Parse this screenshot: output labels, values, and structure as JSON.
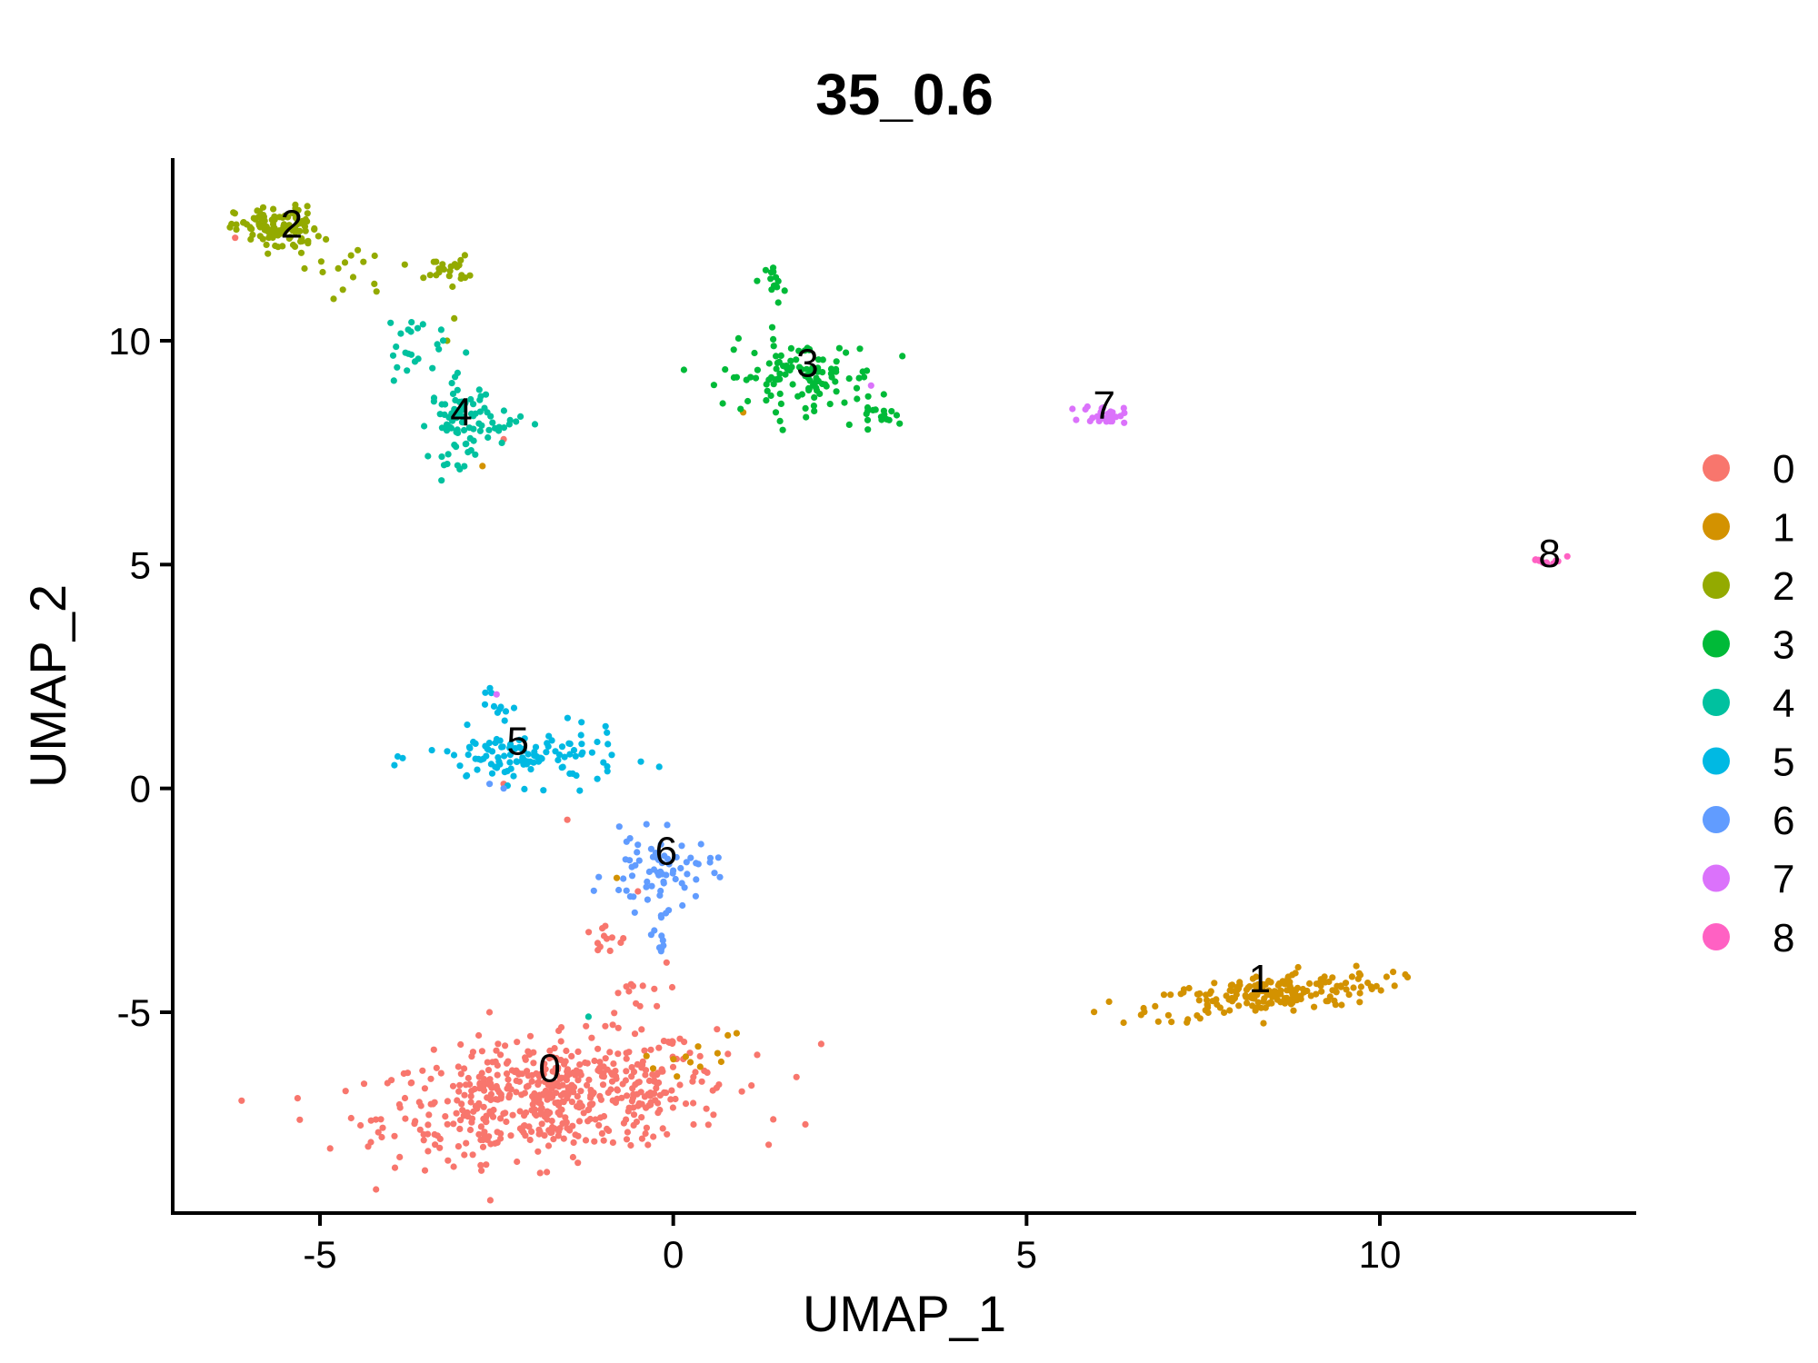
{
  "chart_data": {
    "type": "scatter",
    "title": "35_0.6",
    "xlabel": "UMAP_1",
    "ylabel": "UMAP_2",
    "xlim": [
      -7.1,
      13.6
    ],
    "ylim": [
      -9.5,
      14.2
    ],
    "x_ticks": [
      -5,
      0,
      5,
      10
    ],
    "x_tick_labels": [
      "-5",
      "0",
      "5",
      "10"
    ],
    "y_ticks": [
      -5,
      0,
      5,
      10
    ],
    "y_tick_labels": [
      "-5",
      "0",
      "5",
      "10"
    ],
    "grid": false,
    "legend_position": "right",
    "series": [
      {
        "name": "0",
        "color": "#F8766D",
        "clusters": [
          {
            "cx": -1.7,
            "cy": -6.9,
            "sx": 1.25,
            "sy": 0.62,
            "n": 560,
            "rot": 0.18
          },
          {
            "cx": -0.6,
            "cy": -4.6,
            "sx": 0.25,
            "sy": 0.35,
            "n": 14,
            "rot": 0
          },
          {
            "cx": -1.0,
            "cy": -3.4,
            "sx": 0.2,
            "sy": 0.2,
            "n": 12,
            "rot": 0
          }
        ],
        "points": [
          [
            -6.2,
            12.3
          ],
          [
            -2.4,
            7.8
          ],
          [
            -1.5,
            -0.7
          ],
          [
            -0.5,
            -2.3
          ],
          [
            -2.4,
            0.1
          ]
        ]
      },
      {
        "name": "1",
        "color": "#D39200",
        "clusters": [
          {
            "cx": 8.4,
            "cy": -4.6,
            "sx": 0.85,
            "sy": 0.22,
            "n": 200,
            "rot": 0.18
          },
          {
            "cx": 0.3,
            "cy": -6.0,
            "sx": 0.35,
            "sy": 0.18,
            "n": 12,
            "rot": 0.5
          }
        ],
        "points": [
          [
            -2.7,
            7.2
          ],
          [
            0.99,
            8.4
          ],
          [
            -0.8,
            -2.0
          ]
        ]
      },
      {
        "name": "2",
        "color": "#93AA00",
        "clusters": [
          {
            "cx": -5.6,
            "cy": 12.5,
            "sx": 0.3,
            "sy": 0.25,
            "n": 110,
            "rot": 0
          },
          {
            "cx": -3.2,
            "cy": 11.6,
            "sx": 0.15,
            "sy": 0.15,
            "n": 22,
            "rot": 0
          },
          {
            "cx": -4.6,
            "cy": 11.6,
            "sx": 0.35,
            "sy": 0.3,
            "n": 14,
            "rot": 0
          }
        ],
        "points": [
          [
            -3.1,
            10.5
          ],
          [
            -3.2,
            10.0
          ],
          [
            -3.8,
            11.7
          ],
          [
            -4.2,
            11.1
          ]
        ]
      },
      {
        "name": "3",
        "color": "#00BA38",
        "clusters": [
          {
            "cx": 1.8,
            "cy": 9.2,
            "sx": 0.55,
            "sy": 0.38,
            "n": 110,
            "rot": 0
          },
          {
            "cx": 3.0,
            "cy": 8.3,
            "sx": 0.18,
            "sy": 0.1,
            "n": 18,
            "rot": 0
          },
          {
            "cx": 1.45,
            "cy": 11.3,
            "sx": 0.07,
            "sy": 0.22,
            "n": 14,
            "rot": 0
          }
        ],
        "points": [
          [
            0.7,
            8.6
          ],
          [
            1.4,
            10.3
          ],
          [
            2.6,
            8.7
          ]
        ]
      },
      {
        "name": "4",
        "color": "#00C19F",
        "clusters": [
          {
            "cx": -3.0,
            "cy": 8.2,
            "sx": 0.22,
            "sy": 0.45,
            "n": 85,
            "rot": 0
          },
          {
            "cx": -3.7,
            "cy": 9.8,
            "sx": 0.3,
            "sy": 0.35,
            "n": 22,
            "rot": 0.6
          },
          {
            "cx": -2.2,
            "cy": 8.1,
            "sx": 0.18,
            "sy": 0.15,
            "n": 9,
            "rot": 0
          }
        ],
        "points": [
          [
            -4.0,
            10.4
          ],
          [
            -1.2,
            -5.1
          ]
        ]
      },
      {
        "name": "5",
        "color": "#00B9E3",
        "clusters": [
          {
            "cx": -2.1,
            "cy": 0.7,
            "sx": 0.7,
            "sy": 0.3,
            "n": 120,
            "rot": 0
          },
          {
            "cx": -2.55,
            "cy": 1.9,
            "sx": 0.1,
            "sy": 0.25,
            "n": 10,
            "rot": 0
          }
        ],
        "points": []
      },
      {
        "name": "6",
        "color": "#619CFF",
        "clusters": [
          {
            "cx": -0.2,
            "cy": -1.9,
            "sx": 0.38,
            "sy": 0.42,
            "n": 70,
            "rot": 0
          },
          {
            "cx": -0.15,
            "cy": -3.2,
            "sx": 0.12,
            "sy": 0.3,
            "n": 10,
            "rot": 0
          }
        ],
        "points": [
          [
            -2.4,
            0.0
          ],
          [
            -2.6,
            0.1
          ]
        ]
      },
      {
        "name": "7",
        "color": "#DB72FB",
        "clusters": [
          {
            "cx": 6.1,
            "cy": 8.35,
            "sx": 0.15,
            "sy": 0.1,
            "n": 30,
            "rot": 0
          }
        ],
        "points": [
          [
            2.8,
            9.0
          ],
          [
            -2.5,
            2.1
          ]
        ]
      },
      {
        "name": "8",
        "color": "#FF61C3",
        "clusters": [
          {
            "cx": 12.4,
            "cy": 5.1,
            "sx": 0.12,
            "sy": 0.07,
            "n": 12,
            "rot": 0
          }
        ],
        "points": []
      }
    ],
    "cluster_labels": [
      {
        "text": "0",
        "x": -1.75,
        "y": -6.55
      },
      {
        "text": "1",
        "x": 8.3,
        "y": -4.55
      },
      {
        "text": "2",
        "x": -5.4,
        "y": 12.3
      },
      {
        "text": "3",
        "x": 1.9,
        "y": 9.2
      },
      {
        "text": "4",
        "x": -3.0,
        "y": 8.1
      },
      {
        "text": "5",
        "x": -2.2,
        "y": 0.75
      },
      {
        "text": "6",
        "x": -0.1,
        "y": -1.7
      },
      {
        "text": "7",
        "x": 6.1,
        "y": 8.25
      },
      {
        "text": "8",
        "x": 12.4,
        "y": 4.95
      }
    ]
  }
}
